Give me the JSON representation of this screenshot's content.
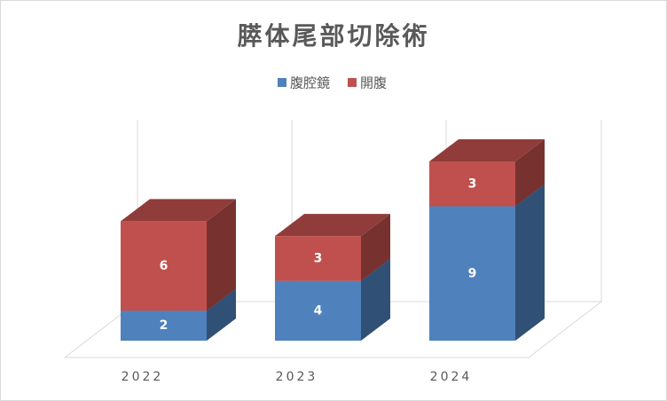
{
  "chart_data": {
    "type": "bar3d_stacked",
    "title": "膵体尾部切除術",
    "categories": [
      "2022",
      "2023",
      "2024"
    ],
    "series": [
      {
        "name": "腹腔鏡",
        "color": "#4f81bd",
        "values": [
          2,
          4,
          9
        ]
      },
      {
        "name": "開腹",
        "color": "#c0504d",
        "values": [
          6,
          3,
          3
        ]
      }
    ],
    "ylim": [
      0,
      12
    ],
    "legend": "top"
  }
}
